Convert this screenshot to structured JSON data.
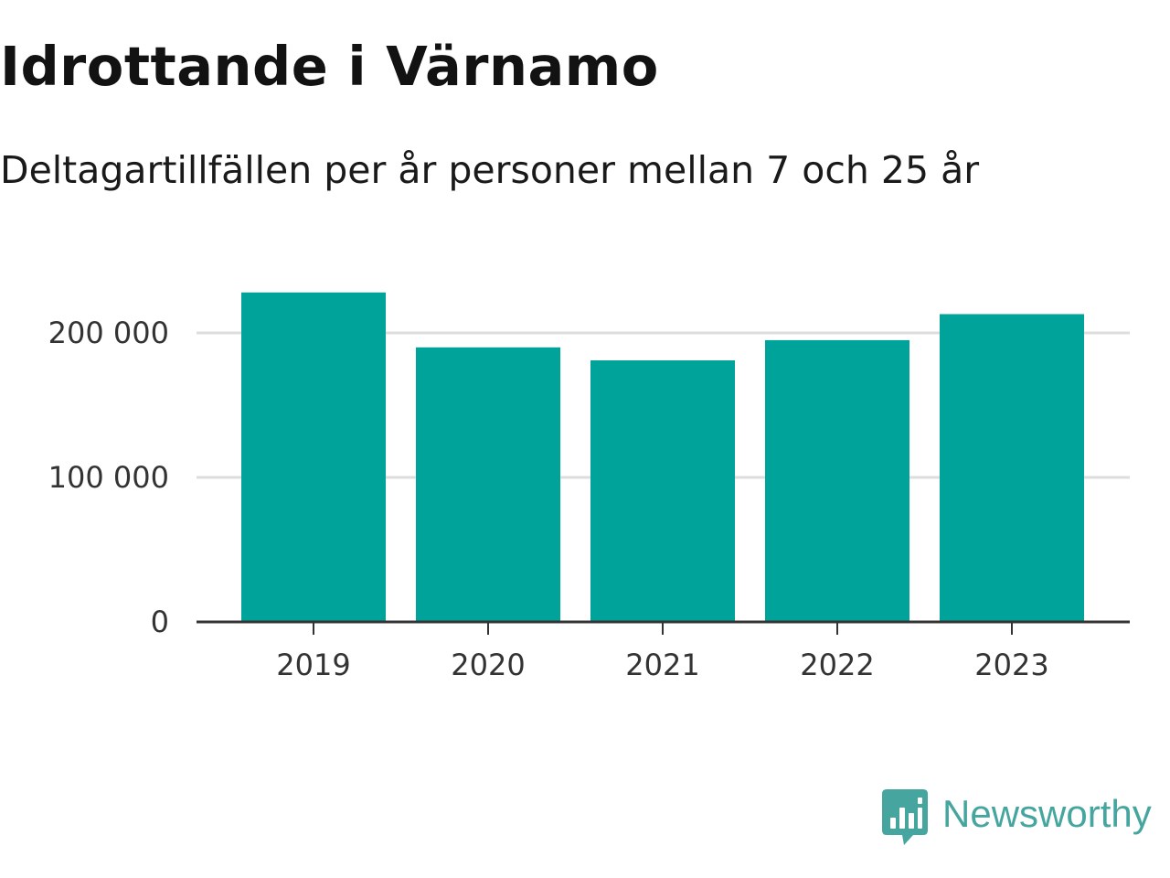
{
  "header": {
    "title": "Idrottande i Värnamo",
    "subtitle": "Deltagartillfällen per år personer mellan 7 och 25 år"
  },
  "brand": {
    "name": "Newsworthy",
    "icon": "newsworthy-logo-icon",
    "color": "#46a69f"
  },
  "chart_data": {
    "type": "bar",
    "categories": [
      "2019",
      "2020",
      "2021",
      "2022",
      "2023"
    ],
    "values": [
      228000,
      190000,
      181000,
      195000,
      213000
    ],
    "yticks": [
      0,
      100000,
      200000
    ],
    "ytick_labels": [
      "0",
      "100 000",
      "200 000"
    ],
    "ylim": [
      0,
      240000
    ],
    "grid": true,
    "bar_color": "#00a39a",
    "grid_color": "#dddddd",
    "axis_color": "#333333"
  }
}
